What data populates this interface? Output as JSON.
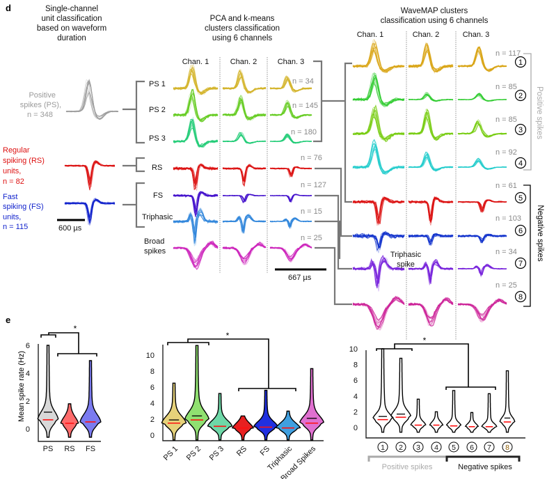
{
  "panel_d": {
    "label": "d",
    "single_channel": {
      "title": [
        "Single-channel",
        "unit classification",
        "based on waveform",
        "duration"
      ],
      "groups": [
        {
          "lines": [
            "Positive",
            "spikes (PS),",
            "n = 348"
          ],
          "color": "#9a9a9a",
          "shape": "positive"
        },
        {
          "lines": [
            "Regular",
            "spiking (RS)",
            "units,",
            "n = 82"
          ],
          "color": "#dd1111",
          "shape": "negative"
        },
        {
          "lines": [
            "Fast",
            "spiking (FS)",
            "units,",
            "n = 115"
          ],
          "color": "#1122cc",
          "shape": "negative"
        }
      ],
      "scale_bar": "600 µs"
    },
    "pca": {
      "title": [
        "PCA and k-means",
        "clusters classification",
        "using 6 channels"
      ],
      "channels": [
        "Chan. 1",
        "Chan. 2",
        "Chan. 3"
      ],
      "clusters": [
        {
          "label": [
            "PS 1"
          ],
          "n": "n = 34",
          "color": "#d4b52a"
        },
        {
          "label": [
            "PS 2"
          ],
          "n": "n = 145",
          "color": "#66cc22"
        },
        {
          "label": [
            "PS 3"
          ],
          "n": "n = 180",
          "color": "#22cc77"
        },
        {
          "label": [
            "RS"
          ],
          "n": "n = 76",
          "color": "#dd1111"
        },
        {
          "label": [
            "FS"
          ],
          "n": "n = 127",
          "color": "#4411cc"
        },
        {
          "label": [
            "Triphasic"
          ],
          "n": "n = 15",
          "color": "#3388dd"
        },
        {
          "label": [
            "Broad",
            "spikes"
          ],
          "n": "n = 25",
          "color": "#cc22bb"
        }
      ],
      "scale_bar": "667  µs"
    },
    "wavemap": {
      "title": [
        "WaveMAP clusters",
        "classification using 6 channels"
      ],
      "channels": [
        "Chan. 1",
        "Chan. 2",
        "Chan. 3"
      ],
      "clusters": [
        {
          "id": "1",
          "n": "n = 117",
          "color": "#d9a514"
        },
        {
          "id": "2",
          "n": "n = 85",
          "color": "#33cc33"
        },
        {
          "id": "3",
          "n": "n = 85",
          "color": "#77cc11"
        },
        {
          "id": "4",
          "n": "n = 92",
          "color": "#22cccc"
        },
        {
          "id": "5",
          "n": "n = 61",
          "color": "#dd1111"
        },
        {
          "id": "6",
          "n": "n = 103",
          "color": "#1133cc"
        },
        {
          "id": "7",
          "n": "n = 34",
          "color": "#7722dd"
        },
        {
          "id": "8",
          "n": "n = 25",
          "color": "#cc2299"
        }
      ],
      "positive_label": "Positive spikes",
      "negative_label": "Negative spikes",
      "triphasic_label": [
        "Triphasic",
        "spike"
      ]
    }
  },
  "panel_e": {
    "label": "e",
    "significance": "*",
    "chart_data": [
      {
        "type": "violin",
        "ylabel": "Mean spike rate (Hz)",
        "yticks": [
          "0",
          "2",
          "4",
          "6"
        ],
        "ylim": [
          -1,
          6.5
        ],
        "categories": [
          "PS",
          "RS",
          "FS"
        ],
        "max": [
          6.0,
          1.8,
          4.9
        ],
        "median": [
          0.65,
          0.4,
          0.5
        ],
        "mean": [
          1.2,
          0.6,
          0.65
        ],
        "colors": [
          "#d8d8d8",
          "#ff6b6b",
          "#7b7bf0"
        ]
      },
      {
        "type": "violin",
        "yticks": [
          "0",
          "2",
          "4",
          "6",
          "8",
          "10"
        ],
        "ylim": [
          -0.8,
          11.5
        ],
        "categories": [
          "PS 1",
          "PS 2",
          "PS 3",
          "RS",
          "FS",
          "Triphasic",
          "Broad Spikes"
        ],
        "max": [
          6.5,
          11.2,
          5.2,
          2.4,
          5.6,
          3.0,
          8.3
        ],
        "median": [
          1.5,
          1.9,
          1.1,
          0.9,
          1.0,
          0.9,
          1.5
        ],
        "mean": [
          1.9,
          2.4,
          1.3,
          1.0,
          1.1,
          1.0,
          2.1
        ],
        "colors": [
          "#e6d27a",
          "#90e070",
          "#6ed8a8",
          "#e82020",
          "#2030e0",
          "#40a0e0",
          "#e070d0"
        ]
      },
      {
        "type": "violin",
        "yticks": [
          "0",
          "2",
          "4",
          "6",
          "8",
          "10"
        ],
        "ylim": [
          -1.3,
          10.3
        ],
        "categories": [
          "1",
          "2",
          "3",
          "4",
          "5",
          "6",
          "7",
          "8"
        ],
        "max": [
          10.0,
          8.8,
          3.6,
          2.0,
          4.7,
          1.9,
          4.3,
          7.2
        ],
        "median": [
          1.0,
          1.3,
          0.3,
          0.3,
          0.2,
          0.1,
          0.1,
          0.7
        ],
        "mean": [
          1.4,
          1.7,
          0.5,
          0.4,
          0.3,
          0.2,
          0.2,
          1.2
        ],
        "colors": [
          "#ffffff",
          "#ffffff",
          "#ffffff",
          "#ffffff",
          "#ffffff",
          "#ffffff",
          "#ffffff",
          "#ffffff"
        ],
        "group_labels": [
          "Positive spikes",
          "Negative spikes"
        ]
      }
    ]
  }
}
